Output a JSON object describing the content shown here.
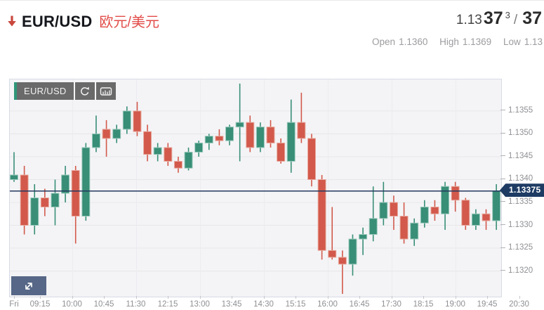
{
  "header": {
    "symbol": "EUR/USD",
    "symbol_cn": "欧元/美元",
    "direction": "down",
    "price": {
      "prefix": "1.13",
      "bid_large": "37",
      "bid_sup": "3",
      "separator": "/",
      "ask_large": "37"
    },
    "stats": [
      {
        "label": "Open",
        "value": "1.1360"
      },
      {
        "label": "High",
        "value": "1.1369"
      },
      {
        "label": "Low",
        "value": "1.13"
      }
    ]
  },
  "chart": {
    "toolbar": {
      "symbol_label": "EUR/USD",
      "refresh_icon": "refresh",
      "style_icon": "chart-style"
    },
    "price_tag": "1.13375",
    "current_price": 1.13375,
    "colors": {
      "up": "#388e77",
      "down": "#d2594b",
      "up_edge": "#9ccabb",
      "down_edge": "#e8aba0",
      "price_line": "#24395e",
      "tag_bg": "#1d3b63",
      "grid": "#e7e7ea",
      "vgrid": "#ececf0",
      "plot_bg": "#f4f4f6",
      "plot_border": "#d7dbe4",
      "axis_text": "#8f9094",
      "accent_red": "#c9473d"
    }
  },
  "chart_data": {
    "type": "candlestick",
    "symbol": "EUR/USD",
    "interval_minutes": 15,
    "grid": true,
    "legend": false,
    "y_ticks": [
      1.132,
      1.1325,
      1.133,
      1.1335,
      1.134,
      1.1345,
      1.135,
      1.1355
    ],
    "y_range": [
      1.13144,
      1.13619
    ],
    "current_price": 1.13375,
    "x_labels": [
      "Fri",
      "09:15",
      "10:00",
      "10:45",
      "11:30",
      "12:15",
      "13:00",
      "13:45",
      "14:30",
      "15:15",
      "16:00",
      "16:45",
      "17:30",
      "18:15",
      "19:00",
      "19:45",
      "20:30"
    ],
    "columns": [
      "time",
      "open",
      "high",
      "low",
      "close"
    ],
    "candles": [
      [
        "08:30",
        1.134,
        1.1346,
        1.13395,
        1.1341
      ],
      [
        "08:45",
        1.1341,
        1.1343,
        1.1328,
        1.133
      ],
      [
        "09:00",
        1.133,
        1.1339,
        1.1328,
        1.1336
      ],
      [
        "09:15",
        1.1336,
        1.1338,
        1.1332,
        1.1334
      ],
      [
        "09:30",
        1.1334,
        1.134,
        1.133,
        1.1337
      ],
      [
        "09:45",
        1.1337,
        1.1343,
        1.1335,
        1.1341
      ],
      [
        "10:00",
        1.1342,
        1.1343,
        1.1326,
        1.1332
      ],
      [
        "10:15",
        1.1332,
        1.1348,
        1.1331,
        1.1347
      ],
      [
        "10:30",
        1.1347,
        1.1354,
        1.1346,
        1.135
      ],
      [
        "10:45",
        1.1351,
        1.1353,
        1.1345,
        1.1349
      ],
      [
        "11:00",
        1.1349,
        1.1352,
        1.1348,
        1.1351
      ],
      [
        "11:15",
        1.1351,
        1.1356,
        1.135,
        1.1355
      ],
      [
        "11:30",
        1.1355,
        1.1357,
        1.13495,
        1.13505
      ],
      [
        "11:45",
        1.13505,
        1.1352,
        1.1344,
        1.13455
      ],
      [
        "12:00",
        1.13455,
        1.1348,
        1.1344,
        1.1347
      ],
      [
        "12:15",
        1.1347,
        1.1348,
        1.1343,
        1.1344
      ],
      [
        "12:30",
        1.1344,
        1.1345,
        1.13415,
        1.13425
      ],
      [
        "12:45",
        1.13425,
        1.1347,
        1.1342,
        1.1346
      ],
      [
        "13:00",
        1.1346,
        1.13485,
        1.1345,
        1.1348
      ],
      [
        "13:15",
        1.1348,
        1.135,
        1.13465,
        1.13495
      ],
      [
        "13:30",
        1.13495,
        1.1351,
        1.13475,
        1.13485
      ],
      [
        "13:45",
        1.13485,
        1.1352,
        1.13475,
        1.13515
      ],
      [
        "14:00",
        1.13515,
        1.1361,
        1.1344,
        1.13525
      ],
      [
        "14:15",
        1.13525,
        1.1354,
        1.1346,
        1.1347
      ],
      [
        "14:30",
        1.1347,
        1.13525,
        1.1346,
        1.13515
      ],
      [
        "14:45",
        1.13515,
        1.1353,
        1.1347,
        1.1348
      ],
      [
        "15:00",
        1.1348,
        1.1349,
        1.13435,
        1.1344
      ],
      [
        "15:15",
        1.1344,
        1.13575,
        1.13415,
        1.13525
      ],
      [
        "15:30",
        1.13525,
        1.1359,
        1.1348,
        1.1349
      ],
      [
        "15:45",
        1.1349,
        1.135,
        1.13385,
        1.134
      ],
      [
        "16:00",
        1.134,
        1.1341,
        1.13225,
        1.13245
      ],
      [
        "16:15",
        1.13245,
        1.1334,
        1.13225,
        1.1323
      ],
      [
        "16:30",
        1.1323,
        1.13245,
        1.1315,
        1.13215
      ],
      [
        "16:45",
        1.13215,
        1.1328,
        1.1319,
        1.1327
      ],
      [
        "17:00",
        1.1327,
        1.13295,
        1.13235,
        1.1328
      ],
      [
        "17:15",
        1.1328,
        1.13385,
        1.13265,
        1.13315
      ],
      [
        "17:30",
        1.13315,
        1.13395,
        1.133,
        1.1335
      ],
      [
        "17:45",
        1.1335,
        1.13365,
        1.1329,
        1.1332
      ],
      [
        "18:00",
        1.1332,
        1.1335,
        1.1326,
        1.1327
      ],
      [
        "18:15",
        1.1327,
        1.13315,
        1.13255,
        1.13305
      ],
      [
        "18:30",
        1.13305,
        1.13355,
        1.13295,
        1.1334
      ],
      [
        "18:45",
        1.1334,
        1.13355,
        1.1331,
        1.13325
      ],
      [
        "19:00",
        1.13325,
        1.13395,
        1.1329,
        1.13385
      ],
      [
        "19:15",
        1.13385,
        1.13395,
        1.1333,
        1.13355
      ],
      [
        "19:30",
        1.13355,
        1.1336,
        1.1329,
        1.133
      ],
      [
        "19:45",
        1.133,
        1.13335,
        1.1329,
        1.13325
      ],
      [
        "20:00",
        1.13325,
        1.13335,
        1.1329,
        1.1331
      ],
      [
        "20:15",
        1.1331,
        1.1339,
        1.1329,
        1.13375
      ]
    ]
  }
}
